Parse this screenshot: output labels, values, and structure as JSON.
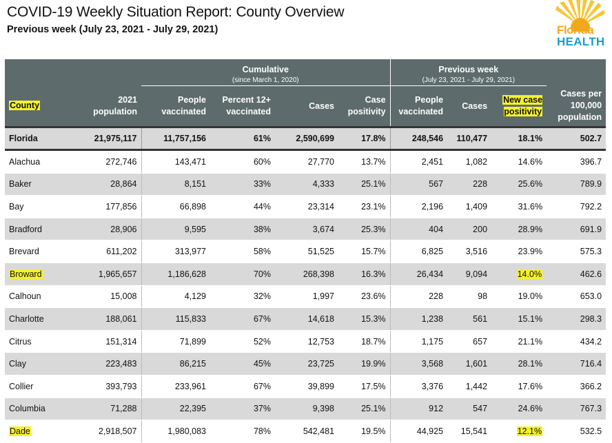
{
  "header": {
    "title": "COVID-19 Weekly Situation Report: County Overview",
    "subtitle": "Previous week (July 23, 2021 - July 29, 2021)"
  },
  "logo": {
    "line1": "Florida",
    "line2": "HEALTH",
    "sun_color": "#f2a81d",
    "text_color": "#1a9ec9"
  },
  "table": {
    "group_cumulative": "Cumulative",
    "group_cumulative_sub": "(since March 1, 2020)",
    "group_previous": "Previous week",
    "group_previous_sub": "(July 23, 2021 - July 29, 2021)",
    "columns": [
      "County",
      "2021 population",
      "People vaccinated",
      "Percent 12+ vaccinated",
      "Cases",
      "Case positivity",
      "People vaccinated",
      "Cases",
      "New case positivity",
      "Cases per 100,000 population"
    ],
    "total": [
      "Florida",
      "21,975,117",
      "11,757,156",
      "61%",
      "2,590,699",
      "17.8%",
      "248,546",
      "110,477",
      "18.1%",
      "502.7"
    ],
    "rows": [
      [
        "Alachua",
        "272,746",
        "143,471",
        "60%",
        "27,770",
        "13.7%",
        "2,451",
        "1,082",
        "14.6%",
        "396.7"
      ],
      [
        "Baker",
        "28,864",
        "8,151",
        "33%",
        "4,333",
        "25.1%",
        "567",
        "228",
        "25.6%",
        "789.9"
      ],
      [
        "Bay",
        "177,856",
        "66,898",
        "44%",
        "23,314",
        "23.1%",
        "2,196",
        "1,409",
        "31.6%",
        "792.2"
      ],
      [
        "Bradford",
        "28,906",
        "9,595",
        "38%",
        "3,674",
        "25.3%",
        "404",
        "200",
        "28.9%",
        "691.9"
      ],
      [
        "Brevard",
        "611,202",
        "313,977",
        "58%",
        "51,525",
        "15.7%",
        "6,825",
        "3,516",
        "23.9%",
        "575.3"
      ],
      [
        "Broward",
        "1,965,657",
        "1,186,628",
        "70%",
        "268,398",
        "16.3%",
        "26,434",
        "9,094",
        "14.0%",
        "462.6"
      ],
      [
        "Calhoun",
        "15,008",
        "4,129",
        "32%",
        "1,997",
        "23.6%",
        "228",
        "98",
        "19.0%",
        "653.0"
      ],
      [
        "Charlotte",
        "188,061",
        "115,833",
        "67%",
        "14,618",
        "15.3%",
        "1,238",
        "561",
        "15.1%",
        "298.3"
      ],
      [
        "Citrus",
        "151,314",
        "71,899",
        "52%",
        "12,753",
        "18.7%",
        "1,175",
        "657",
        "21.1%",
        "434.2"
      ],
      [
        "Clay",
        "223,483",
        "86,215",
        "45%",
        "23,725",
        "19.9%",
        "3,568",
        "1,601",
        "28.1%",
        "716.4"
      ],
      [
        "Collier",
        "393,793",
        "233,961",
        "67%",
        "39,899",
        "17.5%",
        "3,376",
        "1,442",
        "17.6%",
        "366.2"
      ],
      [
        "Columbia",
        "71,288",
        "22,395",
        "37%",
        "9,398",
        "25.1%",
        "912",
        "547",
        "24.6%",
        "767.3"
      ],
      [
        "Dade",
        "2,918,507",
        "1,980,083",
        "78%",
        "542,481",
        "19.5%",
        "44,925",
        "15,541",
        "12.1%",
        "532.5"
      ]
    ],
    "highlight_color": "#f5f12a",
    "header_color": "#5e6b6c"
  }
}
